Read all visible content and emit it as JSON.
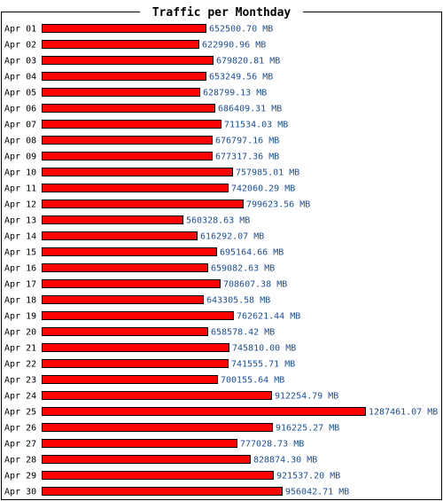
{
  "chart_data": {
    "type": "bar",
    "orientation": "horizontal",
    "title": "Traffic per Monthday",
    "unit": "MB",
    "categories": [
      "Apr 01",
      "Apr 02",
      "Apr 03",
      "Apr 04",
      "Apr 05",
      "Apr 06",
      "Apr 07",
      "Apr 08",
      "Apr 09",
      "Apr 10",
      "Apr 11",
      "Apr 12",
      "Apr 13",
      "Apr 14",
      "Apr 15",
      "Apr 16",
      "Apr 17",
      "Apr 18",
      "Apr 19",
      "Apr 20",
      "Apr 21",
      "Apr 22",
      "Apr 23",
      "Apr 24",
      "Apr 25",
      "Apr 26",
      "Apr 27",
      "Apr 28",
      "Apr 29",
      "Apr 30"
    ],
    "values": [
      652500.7,
      622990.96,
      679820.81,
      653249.56,
      628799.13,
      686409.31,
      711534.03,
      676797.16,
      677317.36,
      757985.01,
      742060.29,
      799623.56,
      560328.63,
      616292.07,
      695164.66,
      659082.63,
      708607.38,
      643305.58,
      762621.44,
      658578.42,
      745810.0,
      741555.71,
      700155.64,
      912254.79,
      1287461.07,
      916225.27,
      777028.73,
      828874.3,
      921537.2,
      956042.71
    ],
    "value_labels": [
      "652500.70 MB",
      "622990.96 MB",
      "679820.81 MB",
      "653249.56 MB",
      "628799.13 MB",
      "686409.31 MB",
      "711534.03 MB",
      "676797.16 MB",
      "677317.36 MB",
      "757985.01 MB",
      "742060.29 MB",
      "799623.56 MB",
      "560328.63 MB",
      "616292.07 MB",
      "695164.66 MB",
      "659082.63 MB",
      "708607.38 MB",
      "643305.58 MB",
      "762621.44 MB",
      "658578.42 MB",
      "745810.00 MB",
      "741555.71 MB",
      "700155.64 MB",
      "912254.79 MB",
      "1287461.07 MB",
      "916225.27 MB",
      "777028.73 MB",
      "828874.30 MB",
      "921537.20 MB",
      "956042.71 MB"
    ],
    "xlim": [
      0,
      1287461.07
    ],
    "grid": false,
    "legend": "none",
    "colors": {
      "bar_fill": "#ff0000",
      "bar_stroke": "#000000",
      "value_text": "#1a4fa0",
      "label_text": "#000000",
      "frame": "#000000"
    }
  }
}
